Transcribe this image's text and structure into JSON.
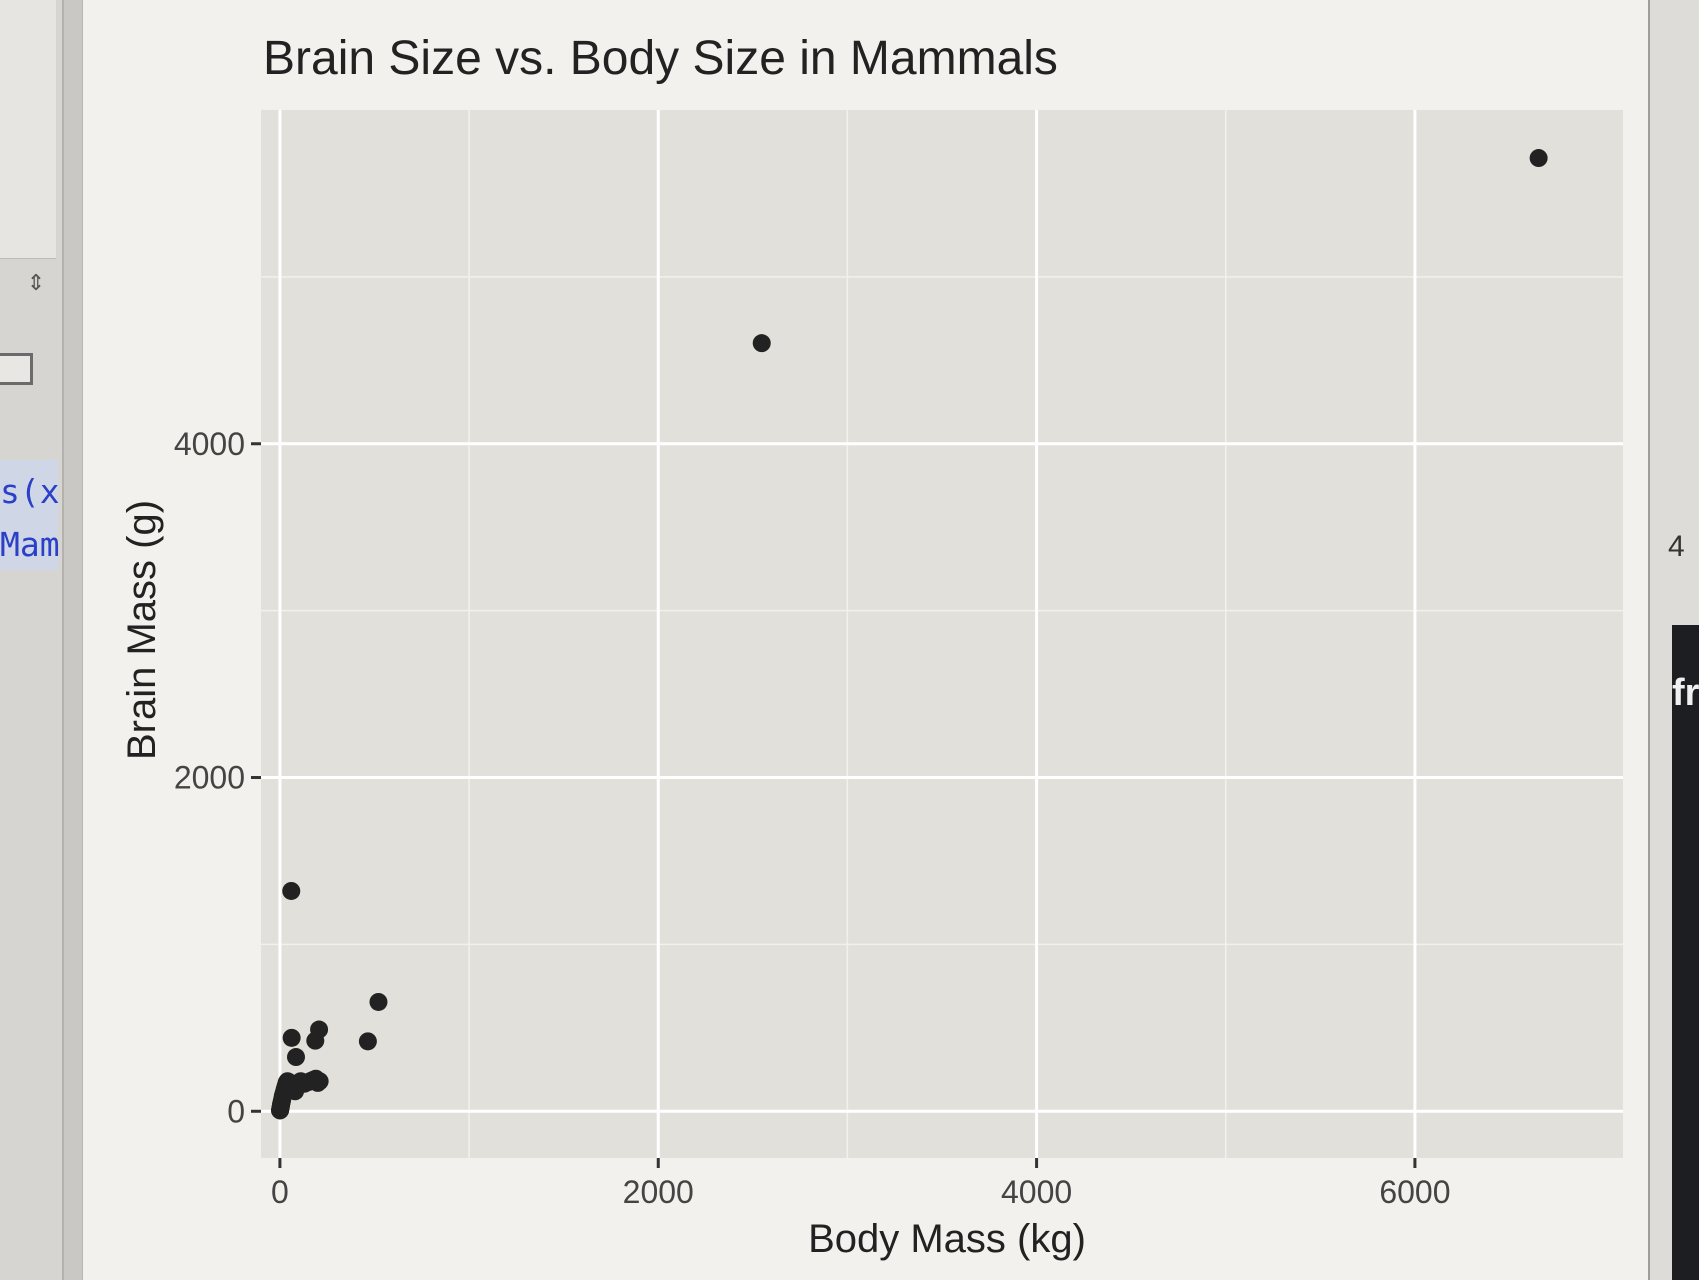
{
  "left_pane": {
    "stepper_icon": "up-down-stepper-icon",
    "code_line_1": "s(x",
    "code_line_2": "Mam",
    "accent_color": "#2b3fc8"
  },
  "right_pane": {
    "number": "4",
    "fragment": "fr"
  },
  "chart_data": {
    "type": "scatter",
    "title": "Brain Size vs. Body Size in Mammals",
    "xlabel": "Body Mass (kg)",
    "ylabel": "Brain Mass (g)",
    "xlim": [
      -100,
      7100
    ],
    "ylim": [
      -280,
      6000
    ],
    "x_ticks": [
      0,
      2000,
      4000,
      6000
    ],
    "y_ticks": [
      0,
      2000,
      4000
    ],
    "x_tick_labels": [
      "0",
      "2000",
      "4000",
      "6000"
    ],
    "y_tick_labels": [
      "0",
      "2000",
      "4000"
    ],
    "grid": true,
    "panel_color": "#e2e0da",
    "point_color": "#222222",
    "series": [
      {
        "x": [
          6654,
          2547,
          60,
          521,
          465,
          187,
          207,
          62,
          85,
          0.5,
          2,
          5,
          10,
          15,
          20,
          25,
          30,
          35,
          40,
          45,
          50,
          55,
          60,
          70,
          80,
          90,
          100,
          110,
          120,
          130,
          150,
          160,
          170,
          180,
          190,
          200,
          210,
          1,
          3,
          6,
          12,
          18,
          28,
          38,
          48,
          8,
          4,
          7
        ],
        "y": [
          5712,
          4603,
          1320,
          655,
          419,
          423,
          490,
          440,
          325,
          5,
          12,
          30,
          60,
          90,
          110,
          130,
          150,
          170,
          180,
          175,
          160,
          150,
          140,
          130,
          120,
          160,
          170,
          180,
          175,
          165,
          175,
          180,
          185,
          190,
          195,
          170,
          180,
          8,
          20,
          40,
          70,
          100,
          140,
          160,
          175,
          50,
          25,
          45
        ]
      }
    ]
  }
}
